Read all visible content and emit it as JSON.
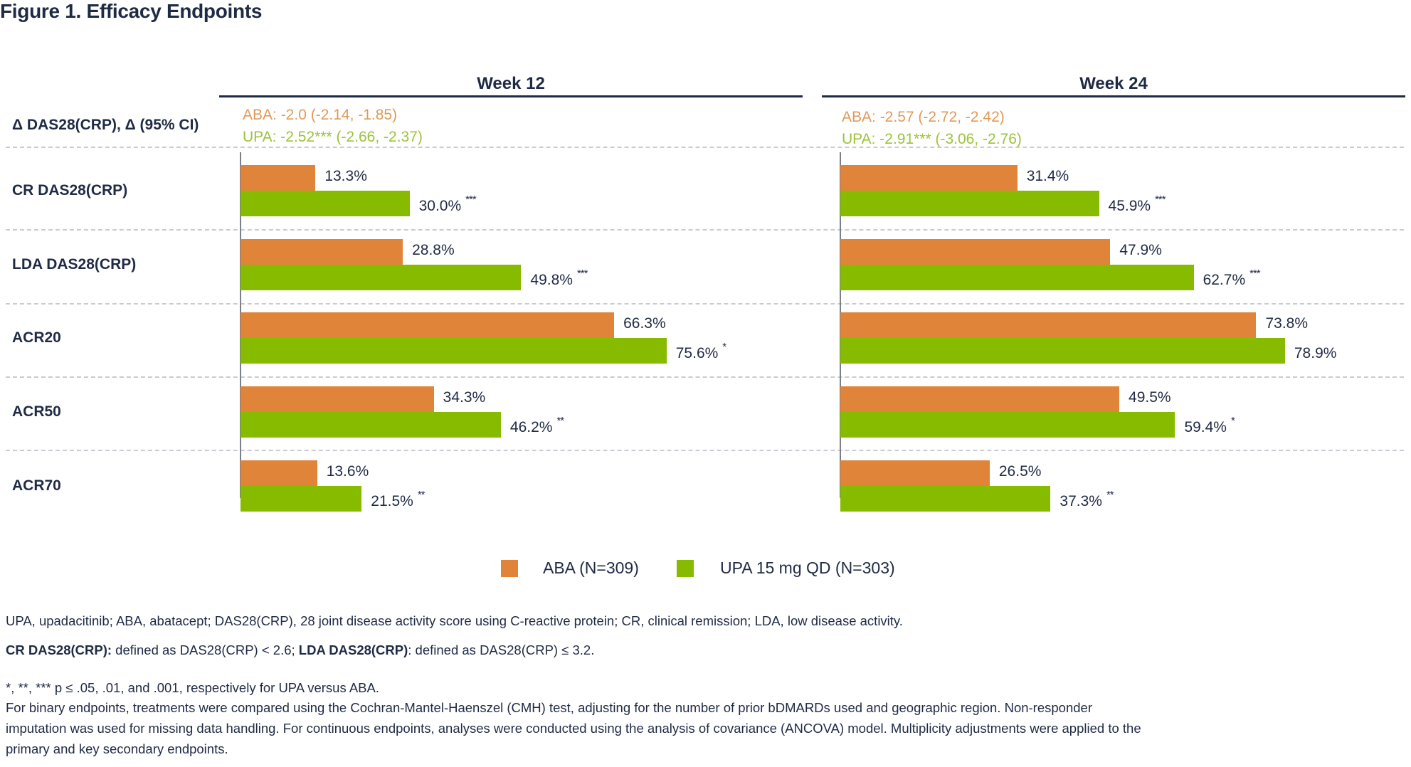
{
  "title": "Figure 1. Efficacy Endpoints",
  "colors": {
    "aba": "#e0843a",
    "upa": "#87bb00",
    "text": "#1f2a44"
  },
  "chart_data": {
    "type": "bar",
    "orientation": "horizontal",
    "title": "Figure 1. Efficacy Endpoints",
    "panels": [
      "Week 12",
      "Week 24"
    ],
    "categories": [
      "CR DAS28(CRP)",
      "LDA DAS28(CRP)",
      "ACR20",
      "ACR50",
      "ACR70"
    ],
    "unit": "%",
    "xlim": [
      0,
      100
    ],
    "grid": false,
    "legend_position": "bottom-center",
    "series": [
      {
        "name": "ABA (N=309)",
        "color": "#e0843a",
        "week12": [
          13.3,
          28.8,
          66.3,
          34.3,
          13.6
        ],
        "week24": [
          31.4,
          47.9,
          73.8,
          49.5,
          26.5
        ]
      },
      {
        "name": "UPA 15 mg QD (N=303)",
        "color": "#87bb00",
        "week12": [
          30.0,
          49.8,
          75.6,
          46.2,
          21.5
        ],
        "week24": [
          45.9,
          62.7,
          78.9,
          59.4,
          37.3
        ]
      }
    ],
    "significance": {
      "week12": [
        "***",
        "***",
        "*",
        "**",
        "**"
      ],
      "week24": [
        "***",
        "***",
        "",
        "*",
        "**"
      ]
    },
    "delta_row": {
      "label": "Δ DAS28(CRP), Δ (95% CI)",
      "week12": {
        "aba": "ABA: -2.0 (-2.14, -1.85)",
        "upa": "UPA: -2.52*** (-2.66, -2.37)"
      },
      "week24": {
        "aba": "ABA: -2.57 (-2.72, -2.42)",
        "upa": "UPA: -2.91*** (-3.06, -2.76)"
      }
    }
  },
  "legend": [
    {
      "label": "ABA (N=309)",
      "color": "#e0843a"
    },
    {
      "label": "UPA 15 mg QD (N=303)",
      "color": "#87bb00"
    }
  ],
  "footnotes": {
    "abbrev": "UPA, upadacitinib; ABA, abatacept; DAS28(CRP), 28 joint disease activity score using C-reactive protein; CR, clinical remission; LDA, low disease activity.",
    "def_cr_label": "CR DAS28(CRP):",
    "def_cr_text": " defined as DAS28(CRP) < 2.6; ",
    "def_lda_label": "LDA DAS28(CRP)",
    "def_lda_text": ": defined as DAS28(CRP) ≤ 3.2.",
    "sig": "*, **, *** p ≤ .05, .01, and .001, respectively for UPA versus ABA.",
    "methods_1": "For binary endpoints, treatments were compared using the Cochran-Mantel-Haenszel (CMH) test, adjusting for the number of prior bDMARDs used and geographic region. Non-responder",
    "methods_2": "imputation was used for missing data handling. For continuous endpoints, analyses were conducted using the analysis of covariance (ANCOVA) model. Multiplicity adjustments were applied to the",
    "methods_3": "primary and key secondary endpoints."
  }
}
